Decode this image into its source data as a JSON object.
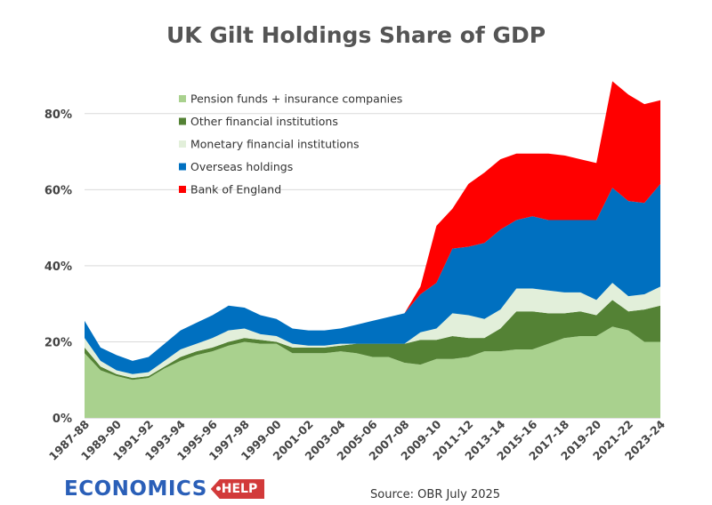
{
  "chart_data": {
    "type": "area",
    "stacked": true,
    "title": "UK Gilt Holdings Share of GDP",
    "source": "Source: OBR July 2025",
    "ylim": [
      0,
      90
    ],
    "yticks": [
      0,
      20,
      40,
      60,
      80
    ],
    "ytick_labels": [
      "0%",
      "20%",
      "40%",
      "60%",
      "80%"
    ],
    "legend_position": "top-left inside plot",
    "grid": true,
    "x": [
      "1987-88",
      "1988-89",
      "1989-90",
      "1990-91",
      "1991-92",
      "1992-93",
      "1993-94",
      "1994-95",
      "1995-96",
      "1996-97",
      "1997-98",
      "1998-99",
      "1999-00",
      "2000-01",
      "2001-02",
      "2002-03",
      "2003-04",
      "2004-05",
      "2005-06",
      "2006-07",
      "2007-08",
      "2008-09",
      "2009-10",
      "2010-11",
      "2011-12",
      "2012-13",
      "2013-14",
      "2014-15",
      "2015-16",
      "2016-17",
      "2017-18",
      "2018-19",
      "2019-20",
      "2020-21",
      "2021-22",
      "2022-23",
      "2023-24"
    ],
    "xtick_labels": [
      "1987-88",
      "1989-90",
      "1991-92",
      "1993-94",
      "1995-96",
      "1997-98",
      "1999-00",
      "2001-02",
      "2003-04",
      "2005-06",
      "2007-08",
      "2009-10",
      "2011-12",
      "2013-14",
      "2015-16",
      "2017-18",
      "2019-20",
      "2021-22",
      "2023-24"
    ],
    "series": [
      {
        "name": "Pension funds + insurance companies",
        "color": "#a9d18e",
        "values": [
          17.0,
          12.5,
          11.0,
          10.0,
          10.5,
          13.0,
          15.0,
          16.5,
          17.5,
          19.0,
          20.0,
          19.5,
          19.5,
          17.0,
          17.0,
          17.0,
          17.5,
          17.0,
          16.0,
          16.0,
          14.5,
          14.0,
          15.5,
          15.5,
          16.0,
          17.5,
          17.5,
          18.0,
          18.0,
          19.5,
          21.0,
          21.5,
          21.5,
          24.0,
          23.0,
          20.0,
          20.0
        ]
      },
      {
        "name": "Other financial institutions",
        "color": "#548235",
        "values": [
          1.5,
          1.0,
          0.5,
          0.5,
          0.5,
          0.5,
          1.0,
          1.0,
          1.0,
          1.0,
          1.0,
          1.0,
          0.5,
          1.5,
          1.5,
          1.5,
          1.5,
          2.5,
          3.5,
          3.5,
          5.0,
          6.5,
          5.0,
          6.0,
          5.0,
          3.5,
          6.0,
          10.0,
          10.0,
          8.0,
          6.5,
          6.5,
          5.5,
          7.0,
          5.0,
          8.5,
          9.5
        ]
      },
      {
        "name": "Monetary financial institutions",
        "color": "#e2efda",
        "values": [
          2.5,
          1.5,
          1.0,
          1.0,
          1.0,
          1.5,
          2.0,
          2.0,
          2.5,
          3.0,
          2.5,
          1.5,
          1.5,
          1.0,
          0.5,
          0.5,
          0.5,
          0.0,
          0.0,
          0.0,
          0.0,
          2.0,
          3.0,
          6.0,
          6.0,
          5.0,
          5.0,
          6.0,
          6.0,
          6.0,
          5.5,
          5.0,
          4.0,
          4.5,
          4.0,
          4.0,
          5.0
        ]
      },
      {
        "name": "Overseas holdings",
        "color": "#0070c0",
        "values": [
          4.5,
          3.5,
          4.0,
          3.5,
          4.0,
          4.5,
          5.0,
          5.5,
          6.0,
          6.5,
          5.5,
          5.0,
          4.5,
          4.0,
          4.0,
          4.0,
          4.0,
          5.0,
          6.0,
          7.0,
          8.0,
          10.0,
          12.0,
          17.0,
          18.0,
          20.0,
          21.0,
          18.0,
          19.0,
          18.5,
          19.0,
          19.0,
          21.0,
          25.0,
          25.0,
          24.0,
          27.0
        ]
      },
      {
        "name": "Bank of England",
        "color": "#ff0000",
        "values": [
          0,
          0,
          0,
          0,
          0,
          0,
          0,
          0,
          0,
          0,
          0,
          0,
          0,
          0,
          0,
          0,
          0,
          0,
          0,
          0,
          0,
          2.0,
          15.0,
          10.5,
          16.5,
          18.5,
          18.5,
          17.5,
          16.5,
          17.5,
          17.0,
          16.0,
          15.0,
          28.0,
          28.0,
          26.0,
          22.0
        ]
      }
    ]
  },
  "logo": {
    "word": "ECONOMICS",
    "tag": "HELP"
  }
}
